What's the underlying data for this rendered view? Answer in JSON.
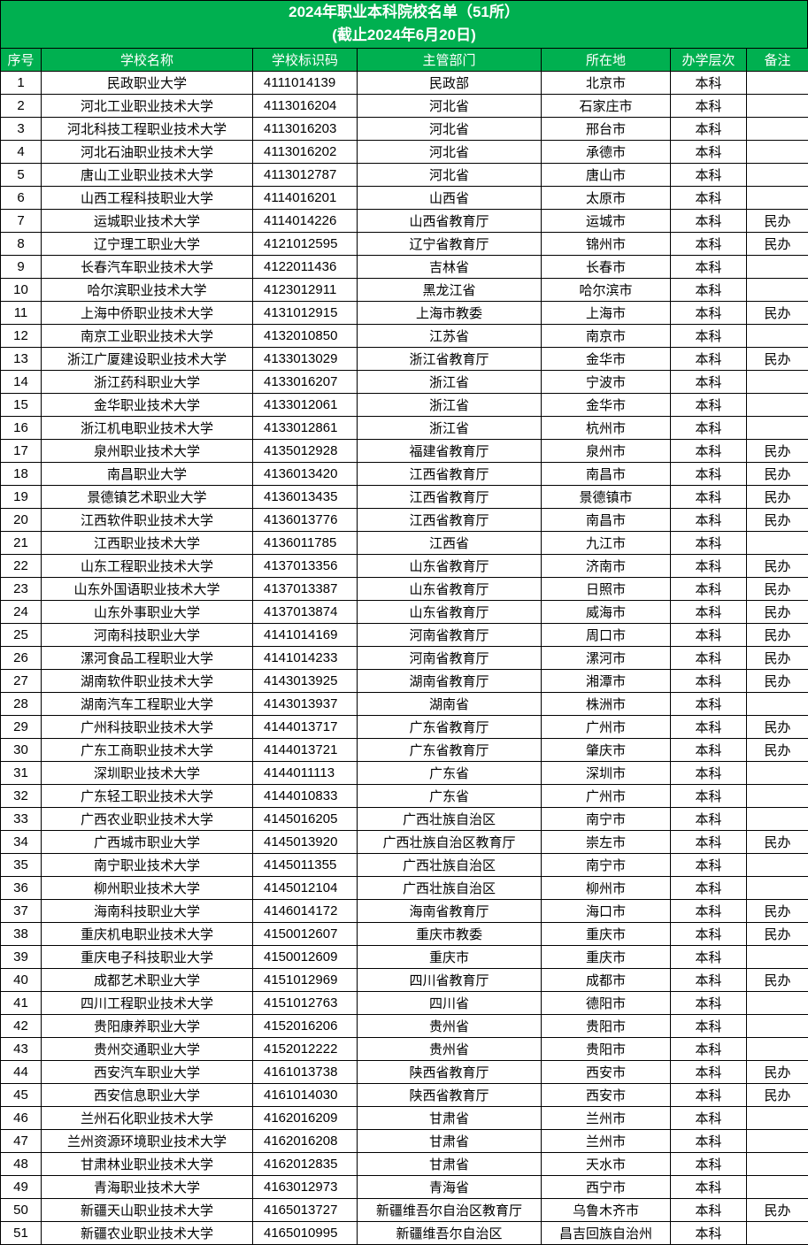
{
  "title": {
    "line1": "2024年职业本科院校名单（51所）",
    "line2": "(截止2024年6月20日)"
  },
  "colors": {
    "header_bg": "#00b050",
    "header_text": "#ffffff",
    "border": "#000000"
  },
  "table": {
    "columns": [
      "序号",
      "学校名称",
      "学校标识码",
      "主管部门",
      "所在地",
      "办学层次",
      "备注"
    ],
    "rows": [
      [
        "1",
        "民政职业大学",
        "4111014139",
        "民政部",
        "北京市",
        "本科",
        ""
      ],
      [
        "2",
        "河北工业职业技术大学",
        "4113016204",
        "河北省",
        "石家庄市",
        "本科",
        ""
      ],
      [
        "3",
        "河北科技工程职业技术大学",
        "4113016203",
        "河北省",
        "邢台市",
        "本科",
        ""
      ],
      [
        "4",
        "河北石油职业技术大学",
        "4113016202",
        "河北省",
        "承德市",
        "本科",
        ""
      ],
      [
        "5",
        "唐山工业职业技术大学",
        "4113012787",
        "河北省",
        "唐山市",
        "本科",
        ""
      ],
      [
        "6",
        "山西工程科技职业大学",
        "4114016201",
        "山西省",
        "太原市",
        "本科",
        ""
      ],
      [
        "7",
        "运城职业技术大学",
        "4114014226",
        "山西省教育厅",
        "运城市",
        "本科",
        "民办"
      ],
      [
        "8",
        "辽宁理工职业大学",
        "4121012595",
        "辽宁省教育厅",
        "锦州市",
        "本科",
        "民办"
      ],
      [
        "9",
        "长春汽车职业技术大学",
        "4122011436",
        "吉林省",
        "长春市",
        "本科",
        ""
      ],
      [
        "10",
        "哈尔滨职业技术大学",
        "4123012911",
        "黑龙江省",
        "哈尔滨市",
        "本科",
        ""
      ],
      [
        "11",
        "上海中侨职业技术大学",
        "4131012915",
        "上海市教委",
        "上海市",
        "本科",
        "民办"
      ],
      [
        "12",
        "南京工业职业技术大学",
        "4132010850",
        "江苏省",
        "南京市",
        "本科",
        ""
      ],
      [
        "13",
        "浙江广厦建设职业技术大学",
        "4133013029",
        "浙江省教育厅",
        "金华市",
        "本科",
        "民办"
      ],
      [
        "14",
        "浙江药科职业大学",
        "4133016207",
        "浙江省",
        "宁波市",
        "本科",
        ""
      ],
      [
        "15",
        "金华职业技术大学",
        "4133012061",
        "浙江省",
        "金华市",
        "本科",
        ""
      ],
      [
        "16",
        "浙江机电职业技术大学",
        "4133012861",
        "浙江省",
        "杭州市",
        "本科",
        ""
      ],
      [
        "17",
        "泉州职业技术大学",
        "4135012928",
        "福建省教育厅",
        "泉州市",
        "本科",
        "民办"
      ],
      [
        "18",
        "南昌职业大学",
        "4136013420",
        "江西省教育厅",
        "南昌市",
        "本科",
        "民办"
      ],
      [
        "19",
        "景德镇艺术职业大学",
        "4136013435",
        "江西省教育厅",
        "景德镇市",
        "本科",
        "民办"
      ],
      [
        "20",
        "江西软件职业技术大学",
        "4136013776",
        "江西省教育厅",
        "南昌市",
        "本科",
        "民办"
      ],
      [
        "21",
        "江西职业技术大学",
        "4136011785",
        "江西省",
        "九江市",
        "本科",
        ""
      ],
      [
        "22",
        "山东工程职业技术大学",
        "4137013356",
        "山东省教育厅",
        "济南市",
        "本科",
        "民办"
      ],
      [
        "23",
        "山东外国语职业技术大学",
        "4137013387",
        "山东省教育厅",
        "日照市",
        "本科",
        "民办"
      ],
      [
        "24",
        "山东外事职业大学",
        "4137013874",
        "山东省教育厅",
        "威海市",
        "本科",
        "民办"
      ],
      [
        "25",
        "河南科技职业大学",
        "4141014169",
        "河南省教育厅",
        "周口市",
        "本科",
        "民办"
      ],
      [
        "26",
        "漯河食品工程职业大学",
        "4141014233",
        "河南省教育厅",
        "漯河市",
        "本科",
        "民办"
      ],
      [
        "27",
        "湖南软件职业技术大学",
        "4143013925",
        "湖南省教育厅",
        "湘潭市",
        "本科",
        "民办"
      ],
      [
        "28",
        "湖南汽车工程职业大学",
        "4143013937",
        "湖南省",
        "株洲市",
        "本科",
        ""
      ],
      [
        "29",
        "广州科技职业技术大学",
        "4144013717",
        "广东省教育厅",
        "广州市",
        "本科",
        "民办"
      ],
      [
        "30",
        "广东工商职业技术大学",
        "4144013721",
        "广东省教育厅",
        "肇庆市",
        "本科",
        "民办"
      ],
      [
        "31",
        "深圳职业技术大学",
        "4144011113",
        "广东省",
        "深圳市",
        "本科",
        ""
      ],
      [
        "32",
        "广东轻工职业技术大学",
        "4144010833",
        "广东省",
        "广州市",
        "本科",
        ""
      ],
      [
        "33",
        "广西农业职业技术大学",
        "4145016205",
        "广西壮族自治区",
        "南宁市",
        "本科",
        ""
      ],
      [
        "34",
        "广西城市职业大学",
        "4145013920",
        "广西壮族自治区教育厅",
        "崇左市",
        "本科",
        "民办"
      ],
      [
        "35",
        "南宁职业技术大学",
        "4145011355",
        "广西壮族自治区",
        "南宁市",
        "本科",
        ""
      ],
      [
        "36",
        "柳州职业技术大学",
        "4145012104",
        "广西壮族自治区",
        "柳州市",
        "本科",
        ""
      ],
      [
        "37",
        "海南科技职业大学",
        "4146014172",
        "海南省教育厅",
        "海口市",
        "本科",
        "民办"
      ],
      [
        "38",
        "重庆机电职业技术大学",
        "4150012607",
        "重庆市教委",
        "重庆市",
        "本科",
        "民办"
      ],
      [
        "39",
        "重庆电子科技职业大学",
        "4150012609",
        "重庆市",
        "重庆市",
        "本科",
        ""
      ],
      [
        "40",
        "成都艺术职业大学",
        "4151012969",
        "四川省教育厅",
        "成都市",
        "本科",
        "民办"
      ],
      [
        "41",
        "四川工程职业技术大学",
        "4151012763",
        "四川省",
        "德阳市",
        "本科",
        ""
      ],
      [
        "42",
        "贵阳康养职业大学",
        "4152016206",
        "贵州省",
        "贵阳市",
        "本科",
        ""
      ],
      [
        "43",
        "贵州交通职业大学",
        "4152012222",
        "贵州省",
        "贵阳市",
        "本科",
        ""
      ],
      [
        "44",
        "西安汽车职业大学",
        "4161013738",
        "陕西省教育厅",
        "西安市",
        "本科",
        "民办"
      ],
      [
        "45",
        "西安信息职业大学",
        "4161014030",
        "陕西省教育厅",
        "西安市",
        "本科",
        "民办"
      ],
      [
        "46",
        "兰州石化职业技术大学",
        "4162016209",
        "甘肃省",
        "兰州市",
        "本科",
        ""
      ],
      [
        "47",
        "兰州资源环境职业技术大学",
        "4162016208",
        "甘肃省",
        "兰州市",
        "本科",
        ""
      ],
      [
        "48",
        "甘肃林业职业技术大学",
        "4162012835",
        "甘肃省",
        "天水市",
        "本科",
        ""
      ],
      [
        "49",
        "青海职业技术大学",
        "4163012973",
        "青海省",
        "西宁市",
        "本科",
        ""
      ],
      [
        "50",
        "新疆天山职业技术大学",
        "4165013727",
        "新疆维吾尔自治区教育厅",
        "乌鲁木齐市",
        "本科",
        "民办"
      ],
      [
        "51",
        "新疆农业职业技术大学",
        "4165010995",
        "新疆维吾尔自治区",
        "昌吉回族自治州",
        "本科",
        ""
      ]
    ]
  }
}
